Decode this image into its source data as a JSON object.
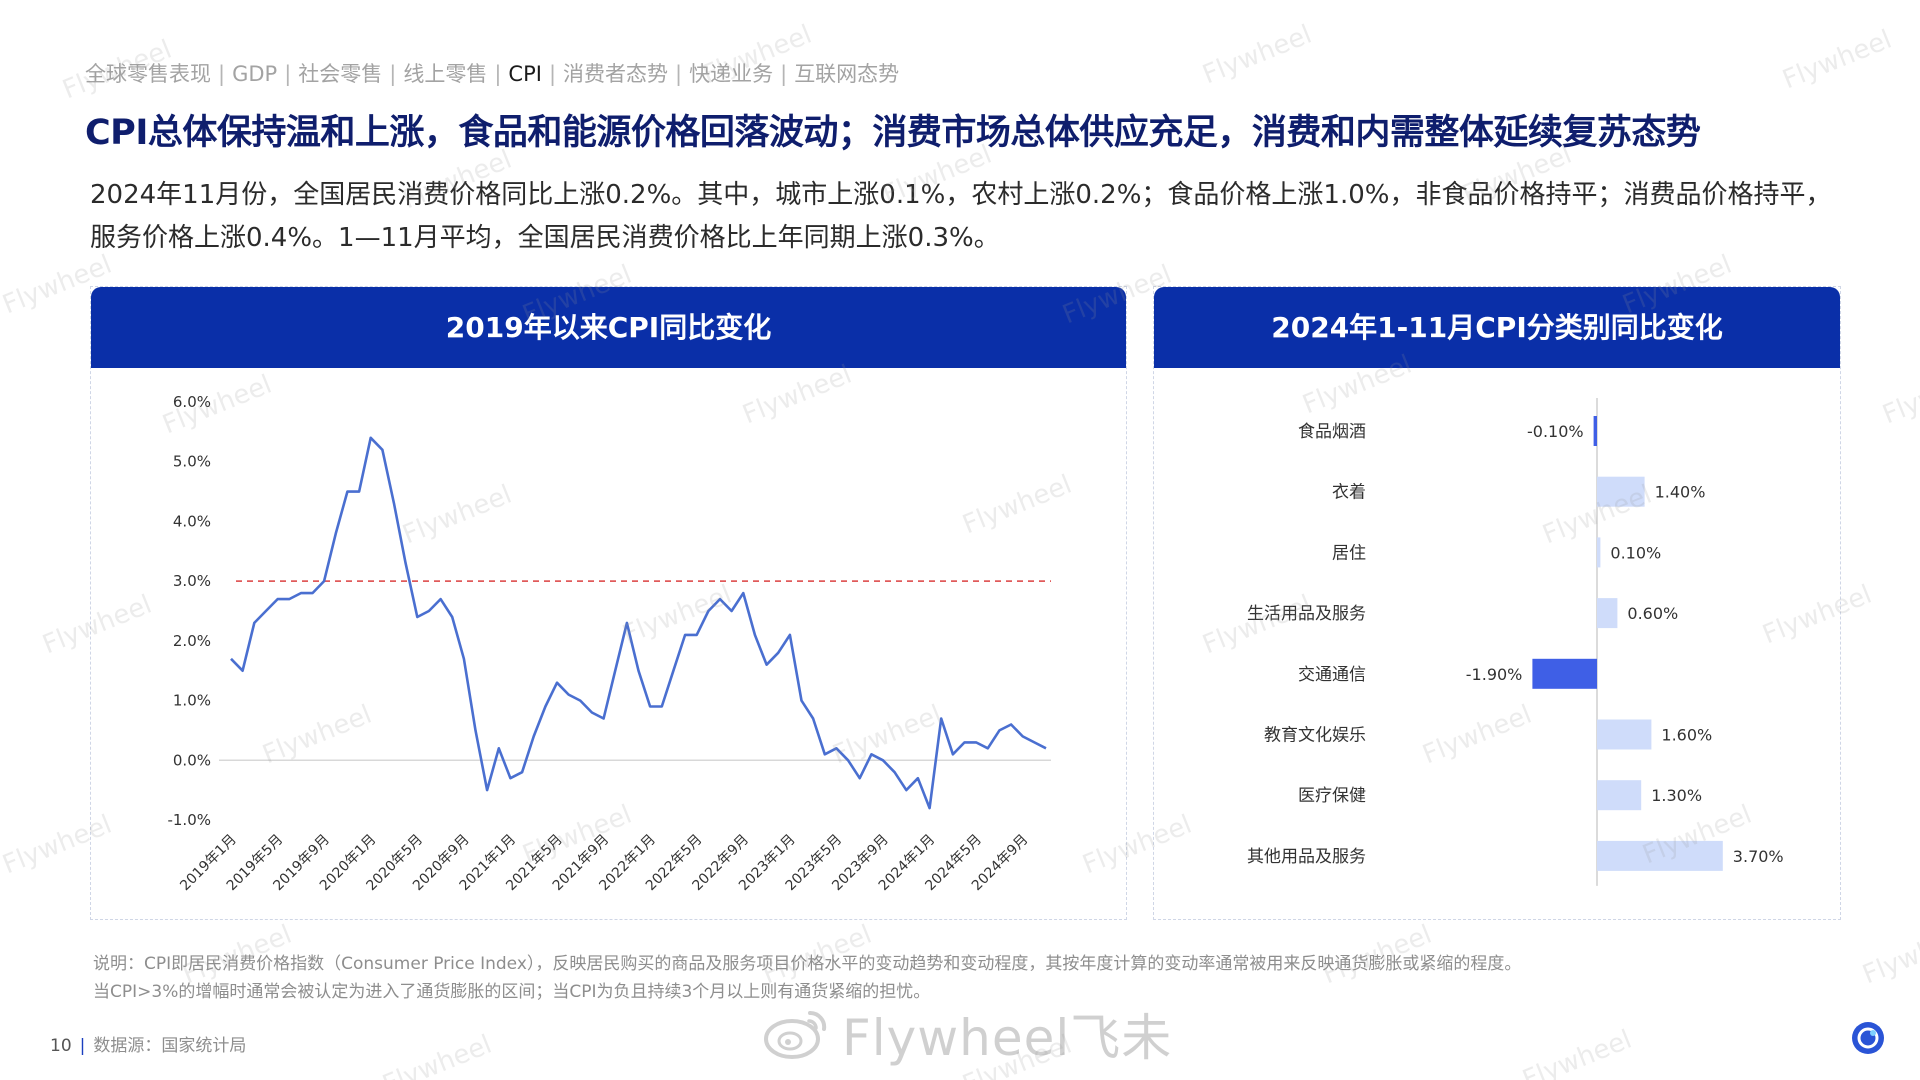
{
  "nav": {
    "items": [
      "全球零售表现",
      "GDP",
      "社会零售",
      "线上零售",
      "CPI",
      "消费者态势",
      "快递业务",
      "互联网态势"
    ],
    "active_index": 4
  },
  "title": "CPI总体保持温和上涨，食品和能源价格回落波动；消费市场总体供应充足，消费和内需整体延续复苏态势",
  "description": "2024年11月份，全国居民消费价格同比上涨0.2%。其中，城市上涨0.1%，农村上涨0.2%；食品价格上涨1.0%，非食品价格持平；消费品价格持平，服务价格上涨0.4%。1—11月平均，全国居民消费价格比上年同期上涨0.3%。",
  "left_panel": {
    "header": "2019年以来CPI同比变化"
  },
  "right_panel": {
    "header": "2024年1-11月CPI分类别同比变化"
  },
  "chart_data": [
    {
      "type": "line",
      "title": "2019年以来CPI同比变化",
      "xlabel": "",
      "ylabel": "",
      "ylim": [
        -1.0,
        6.0
      ],
      "y_ticks": [
        "6.0%",
        "5.0%",
        "4.0%",
        "3.0%",
        "2.0%",
        "1.0%",
        "0.0%",
        "-1.0%"
      ],
      "x_ticks": [
        "2019年1月",
        "2019年5月",
        "2019年9月",
        "2020年1月",
        "2020年5月",
        "2020年9月",
        "2021年1月",
        "2021年5月",
        "2021年9月",
        "2022年1月",
        "2022年5月",
        "2022年9月",
        "2023年1月",
        "2023年5月",
        "2023年9月",
        "2024年1月",
        "2024年5月",
        "2024年9月"
      ],
      "grid": false,
      "threshold": 3.0,
      "line_color": "#4a6fd0",
      "threshold_color": "#e05a5a",
      "series": [
        {
          "x": [
            "2019年1月",
            "2019年2月",
            "2019年3月",
            "2019年4月",
            "2019年5月",
            "2019年6月",
            "2019年7月",
            "2019年8月",
            "2019年9月",
            "2019年10月",
            "2019年11月",
            "2019年12月",
            "2020年1月",
            "2020年2月",
            "2020年3月",
            "2020年4月",
            "2020年5月",
            "2020年6月",
            "2020年7月",
            "2020年8月",
            "2020年9月",
            "2020年10月",
            "2020年11月",
            "2020年12月",
            "2021年1月",
            "2021年2月",
            "2021年3月",
            "2021年4月",
            "2021年5月",
            "2021年6月",
            "2021年7月",
            "2021年8月",
            "2021年9月",
            "2021年10月",
            "2021年11月",
            "2021年12月",
            "2022年1月",
            "2022年2月",
            "2022年3月",
            "2022年4月",
            "2022年5月",
            "2022年6月",
            "2022年7月",
            "2022年8月",
            "2022年9月",
            "2022年10月",
            "2022年11月",
            "2022年12月",
            "2023年1月",
            "2023年2月",
            "2023年3月",
            "2023年4月",
            "2023年5月",
            "2023年6月",
            "2023年7月",
            "2023年8月",
            "2023年9月",
            "2023年10月",
            "2023年11月",
            "2023年12月",
            "2024年1月",
            "2024年2月",
            "2024年3月",
            "2024年4月",
            "2024年5月",
            "2024年6月",
            "2024年7月",
            "2024年8月",
            "2024年9月",
            "2024年10月",
            "2024年11月"
          ],
          "values": [
            1.7,
            1.5,
            2.3,
            2.5,
            2.7,
            2.7,
            2.8,
            2.8,
            3.0,
            3.8,
            4.5,
            4.5,
            5.4,
            5.2,
            4.3,
            3.3,
            2.4,
            2.5,
            2.7,
            2.4,
            1.7,
            0.5,
            -0.5,
            0.2,
            -0.3,
            -0.2,
            0.4,
            0.9,
            1.3,
            1.1,
            1.0,
            0.8,
            0.7,
            1.5,
            2.3,
            1.5,
            0.9,
            0.9,
            1.5,
            2.1,
            2.1,
            2.5,
            2.7,
            2.5,
            2.8,
            2.1,
            1.6,
            1.8,
            2.1,
            1.0,
            0.7,
            0.1,
            0.2,
            0.0,
            -0.3,
            0.1,
            0.0,
            -0.2,
            -0.5,
            -0.3,
            -0.8,
            0.7,
            0.1,
            0.3,
            0.3,
            0.2,
            0.5,
            0.6,
            0.4,
            0.3,
            0.2
          ]
        }
      ]
    },
    {
      "type": "bar",
      "orientation": "horizontal",
      "title": "2024年1-11月CPI分类别同比变化",
      "categories": [
        "食品烟酒",
        "衣着",
        "居住",
        "生活用品及服务",
        "交通通信",
        "教育文化娱乐",
        "医疗保健",
        "其他用品及服务"
      ],
      "values": [
        -0.1,
        1.4,
        0.1,
        0.6,
        -1.9,
        1.6,
        1.3,
        3.7
      ],
      "labels": [
        "-0.10%",
        "1.40%",
        "0.10%",
        "0.60%",
        "-1.90%",
        "1.60%",
        "1.30%",
        "3.70%"
      ],
      "positive_color": "#cfdcfa",
      "negative_color": "#3f5fe6",
      "xlim": [
        -2.0,
        4.0
      ]
    }
  ],
  "note": {
    "line1": "说明：CPI即居民消费价格指数（Consumer Price Index），反映居民购买的商品及服务项目价格水平的变动趋势和变动程度，其按年度计算的变动率通常被用来反映通货膨胀或紧缩的程度。",
    "line2": "当CPI>3%的增幅时通常会被认定为进入了通货膨胀的区间；当CPI为负且持续3个月以上则有通货紧缩的担忧。"
  },
  "footer": {
    "page": "10",
    "source": "数据源：国家统计局"
  },
  "brand": {
    "text": "Flywheel飞未"
  },
  "watermark": "Flywheel"
}
